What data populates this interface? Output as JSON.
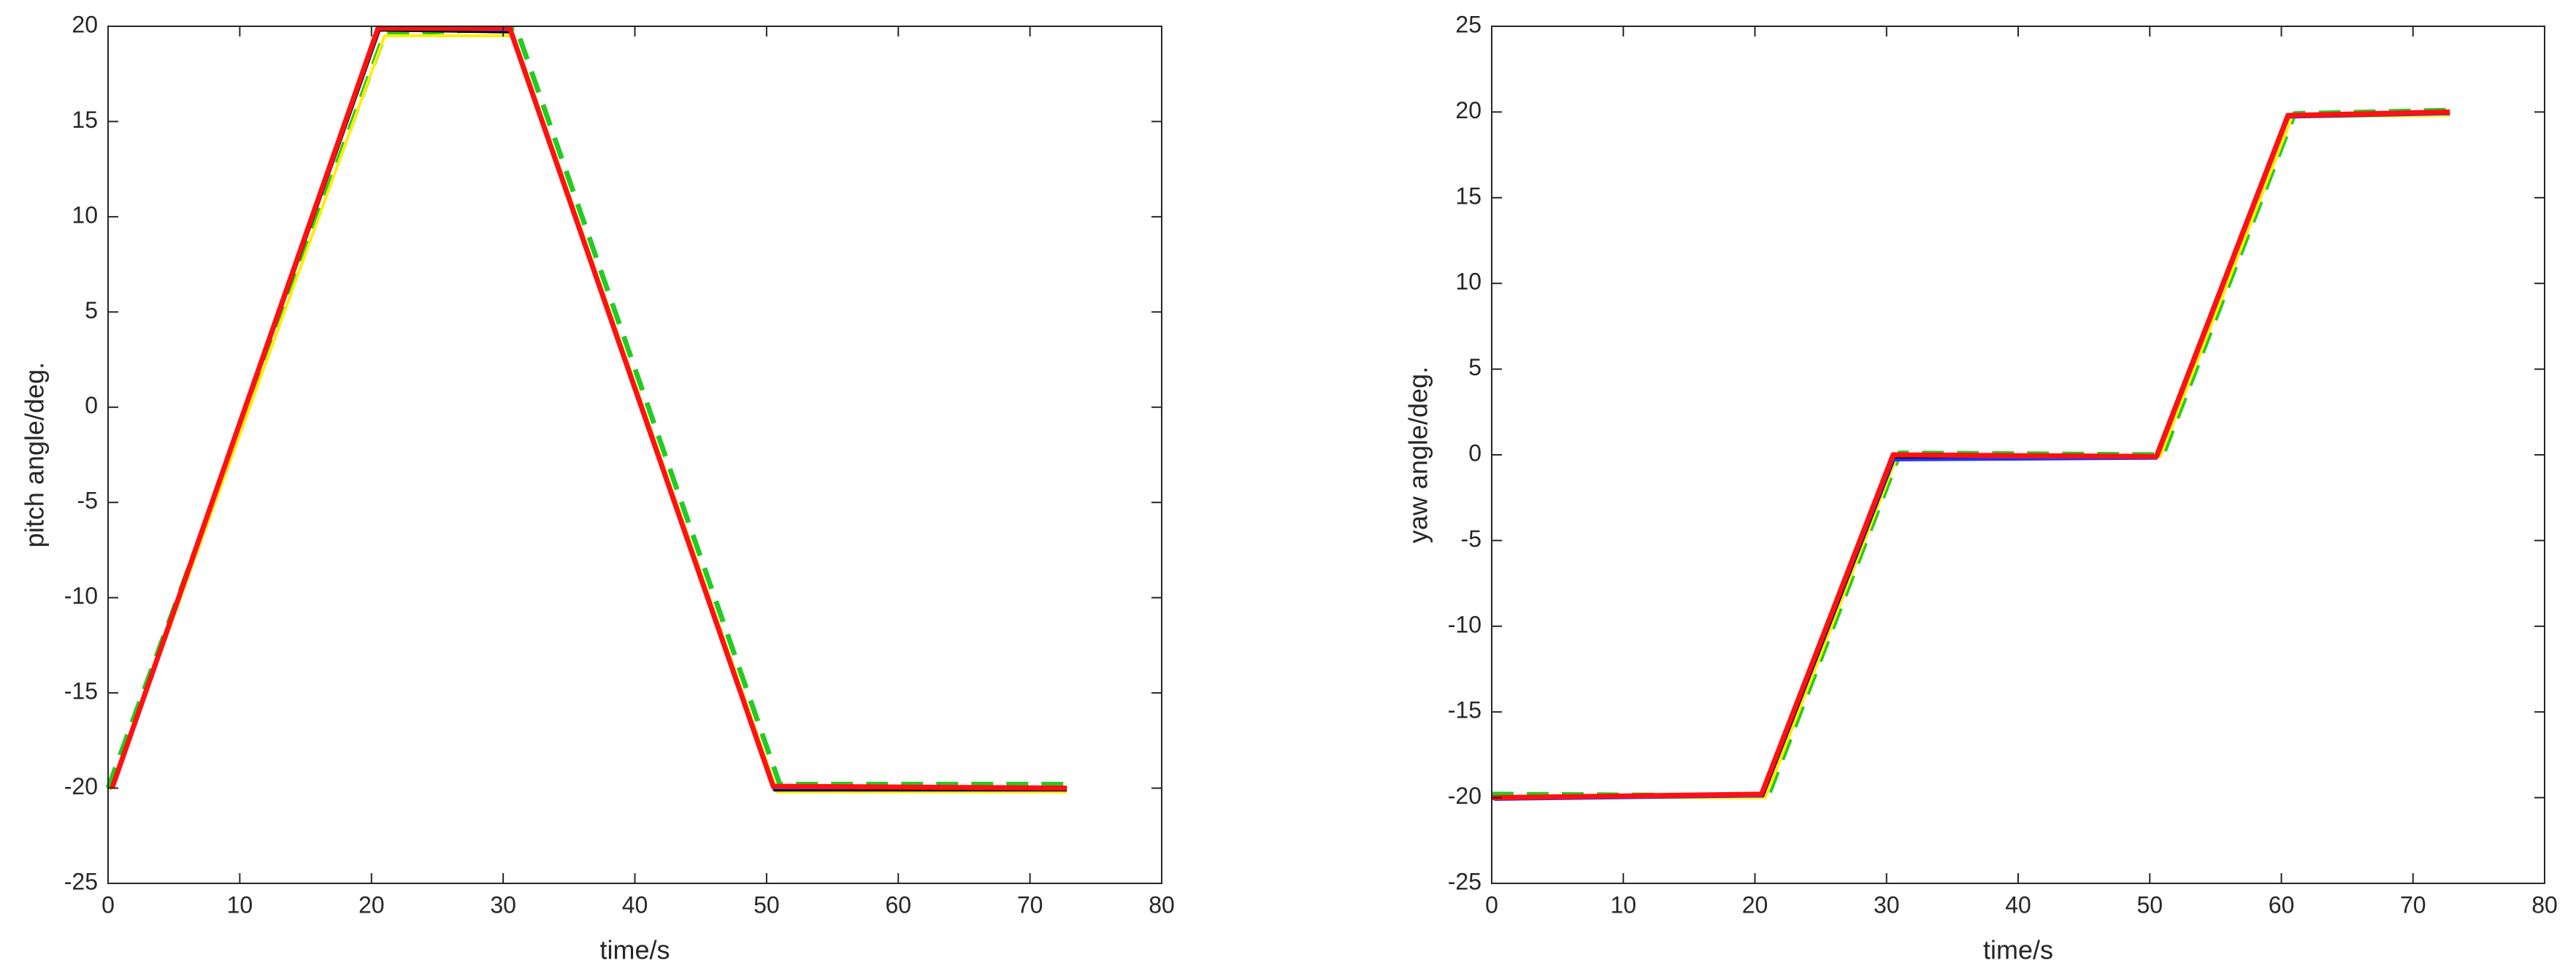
{
  "chart_data": [
    {
      "type": "line",
      "xlabel": "time/s",
      "ylabel": "pitch angle/deg.",
      "xlim": [
        0,
        80
      ],
      "xticks": [
        0,
        10,
        20,
        30,
        40,
        50,
        60,
        70,
        80
      ],
      "ylim": [
        -25,
        20
      ],
      "yticks": [
        -25,
        -20,
        -15,
        -10,
        -5,
        0,
        5,
        10,
        15,
        20
      ],
      "series": [
        {
          "color": "#22cc22",
          "style": "dashed",
          "x": [
            0,
            21,
            31,
            51,
            73
          ],
          "values": [
            -20,
            19.6,
            19.9,
            -19.8,
            -19.8
          ]
        },
        {
          "color": "#ffee00",
          "style": "solid",
          "x": [
            0.2,
            21,
            30.8,
            50.8,
            72.8
          ],
          "values": [
            -20.1,
            19.5,
            19.5,
            -20.2,
            -20.2
          ]
        },
        {
          "color": "#000000",
          "style": "solid",
          "x": [
            0.3,
            20.6,
            30.6,
            50.6,
            72.8
          ],
          "values": [
            -20,
            19.8,
            19.7,
            -20.1,
            -20.1
          ]
        },
        {
          "color": "#2233ff",
          "style": "solid",
          "x": [
            0.3,
            20.5,
            30.5,
            50.5,
            72.8
          ],
          "values": [
            -20,
            19.9,
            19.8,
            -20,
            -20
          ]
        },
        {
          "color": "#ff1111",
          "style": "thick",
          "x": [
            0.3,
            20.5,
            30.5,
            50.5,
            72.8
          ],
          "values": [
            -20,
            19.9,
            19.9,
            -19.9,
            -20
          ]
        }
      ]
    },
    {
      "type": "line",
      "xlabel": "time/s",
      "ylabel": "yaw angle/deg.",
      "xlim": [
        0,
        80
      ],
      "xticks": [
        0,
        10,
        20,
        30,
        40,
        50,
        60,
        70,
        80
      ],
      "ylim": [
        -25,
        25
      ],
      "yticks": [
        -25,
        -20,
        -15,
        -10,
        -5,
        0,
        5,
        10,
        15,
        20,
        25
      ],
      "series": [
        {
          "color": "#22cc22",
          "style": "dashed",
          "x": [
            0,
            21,
            31,
            51,
            61,
            73
          ],
          "values": [
            -19.8,
            -19.9,
            0.1,
            0,
            19.9,
            20.1
          ]
        },
        {
          "color": "#ffee00",
          "style": "solid",
          "x": [
            0.2,
            20.8,
            30.8,
            50.8,
            60.8,
            72.8
          ],
          "values": [
            -20,
            -20,
            -0.1,
            -0.1,
            19.7,
            19.8
          ]
        },
        {
          "color": "#000000",
          "style": "solid",
          "x": [
            0.2,
            20.6,
            30.6,
            50.6,
            60.6,
            72.8
          ],
          "values": [
            -20,
            -19.9,
            -0.2,
            -0.1,
            19.8,
            19.9
          ]
        },
        {
          "color": "#2233ff",
          "style": "solid",
          "x": [
            0.2,
            20.5,
            30.5,
            50.5,
            60.5,
            72.8
          ],
          "values": [
            -20.1,
            -19.9,
            -0.3,
            -0.2,
            19.7,
            19.9
          ]
        },
        {
          "color": "#ff1111",
          "style": "thick",
          "x": [
            0,
            20.5,
            30.5,
            50.5,
            60.5,
            72.8
          ],
          "values": [
            -20,
            -19.8,
            0,
            -0.1,
            19.8,
            20
          ]
        }
      ]
    }
  ]
}
